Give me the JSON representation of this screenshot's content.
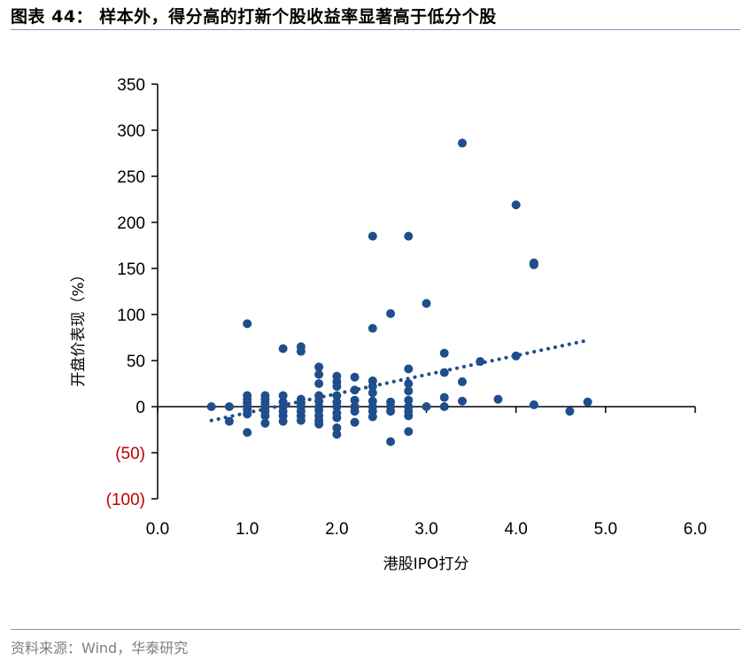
{
  "header": {
    "title": "图表 44：   样本外，得分高的打新个股收益率显著高于低分个股"
  },
  "footer": {
    "source": "资料来源：Wind，华泰研究"
  },
  "chart_data": {
    "type": "scatter",
    "title": "",
    "xlabel": "港股IPO打分",
    "ylabel": "开盘价表现（%）",
    "xlim": [
      0.0,
      6.0
    ],
    "ylim": [
      -100,
      350
    ],
    "x_ticks": [
      "0.0",
      "1.0",
      "2.0",
      "3.0",
      "4.0",
      "5.0",
      "6.0"
    ],
    "y_ticks": [
      {
        "value": 350,
        "label": "350",
        "color": "#000000"
      },
      {
        "value": 300,
        "label": "300",
        "color": "#000000"
      },
      {
        "value": 250,
        "label": "250",
        "color": "#000000"
      },
      {
        "value": 200,
        "label": "200",
        "color": "#000000"
      },
      {
        "value": 150,
        "label": "150",
        "color": "#000000"
      },
      {
        "value": 100,
        "label": "100",
        "color": "#000000"
      },
      {
        "value": 50,
        "label": "50",
        "color": "#000000"
      },
      {
        "value": 0,
        "label": "0",
        "color": "#000000"
      },
      {
        "value": -50,
        "label": "(50)",
        "color": "#c00000"
      },
      {
        "value": -100,
        "label": "(100)",
        "color": "#c00000"
      }
    ],
    "grid": false,
    "marker_color": "#1f4e8c",
    "trendline": {
      "style": "dotted",
      "x": [
        0.6,
        4.8
      ],
      "y": [
        -15,
        72
      ]
    },
    "points": [
      [
        0.6,
        0
      ],
      [
        0.8,
        0
      ],
      [
        0.8,
        -16
      ],
      [
        1.0,
        90
      ],
      [
        1.0,
        12
      ],
      [
        1.0,
        8
      ],
      [
        1.0,
        4
      ],
      [
        1.0,
        0
      ],
      [
        1.0,
        -3
      ],
      [
        1.0,
        -8
      ],
      [
        1.0,
        -28
      ],
      [
        1.2,
        12
      ],
      [
        1.2,
        8
      ],
      [
        1.2,
        4
      ],
      [
        1.2,
        0
      ],
      [
        1.2,
        -5
      ],
      [
        1.2,
        -10
      ],
      [
        1.2,
        -18
      ],
      [
        1.4,
        63
      ],
      [
        1.4,
        12
      ],
      [
        1.4,
        5
      ],
      [
        1.4,
        0
      ],
      [
        1.4,
        -5
      ],
      [
        1.4,
        -10
      ],
      [
        1.4,
        -16
      ],
      [
        1.6,
        65
      ],
      [
        1.6,
        60
      ],
      [
        1.6,
        8
      ],
      [
        1.6,
        4
      ],
      [
        1.6,
        0
      ],
      [
        1.6,
        -5
      ],
      [
        1.6,
        -10
      ],
      [
        1.6,
        -15
      ],
      [
        1.8,
        43
      ],
      [
        1.8,
        35
      ],
      [
        1.8,
        25
      ],
      [
        1.8,
        12
      ],
      [
        1.8,
        6
      ],
      [
        1.8,
        0
      ],
      [
        1.8,
        -4
      ],
      [
        1.8,
        -10
      ],
      [
        1.8,
        -15
      ],
      [
        1.8,
        -19
      ],
      [
        2.0,
        33
      ],
      [
        2.0,
        27
      ],
      [
        2.0,
        22
      ],
      [
        2.0,
        12
      ],
      [
        2.0,
        5
      ],
      [
        2.0,
        0
      ],
      [
        2.0,
        -7
      ],
      [
        2.0,
        -12
      ],
      [
        2.0,
        -23
      ],
      [
        2.0,
        -30
      ],
      [
        2.2,
        32
      ],
      [
        2.2,
        18
      ],
      [
        2.2,
        7
      ],
      [
        2.2,
        0
      ],
      [
        2.2,
        -5
      ],
      [
        2.2,
        -17
      ],
      [
        2.4,
        185
      ],
      [
        2.4,
        85
      ],
      [
        2.4,
        28
      ],
      [
        2.4,
        22
      ],
      [
        2.4,
        15
      ],
      [
        2.4,
        6
      ],
      [
        2.4,
        0
      ],
      [
        2.4,
        -5
      ],
      [
        2.4,
        -11
      ],
      [
        2.6,
        101
      ],
      [
        2.6,
        5
      ],
      [
        2.6,
        0
      ],
      [
        2.6,
        -5
      ],
      [
        2.6,
        -38
      ],
      [
        2.8,
        185
      ],
      [
        2.8,
        41
      ],
      [
        2.8,
        25
      ],
      [
        2.8,
        17
      ],
      [
        2.8,
        7
      ],
      [
        2.8,
        0
      ],
      [
        2.8,
        -5
      ],
      [
        2.8,
        -10
      ],
      [
        2.8,
        -27
      ],
      [
        3.0,
        112
      ],
      [
        3.0,
        0
      ],
      [
        3.2,
        58
      ],
      [
        3.2,
        37
      ],
      [
        3.2,
        10
      ],
      [
        3.2,
        0
      ],
      [
        3.4,
        286
      ],
      [
        3.4,
        27
      ],
      [
        3.4,
        6
      ],
      [
        3.6,
        49
      ],
      [
        3.8,
        8
      ],
      [
        4.0,
        219
      ],
      [
        4.0,
        55
      ],
      [
        4.2,
        156
      ],
      [
        4.2,
        154
      ],
      [
        4.2,
        2
      ],
      [
        4.6,
        -5
      ],
      [
        4.8,
        5
      ]
    ]
  }
}
